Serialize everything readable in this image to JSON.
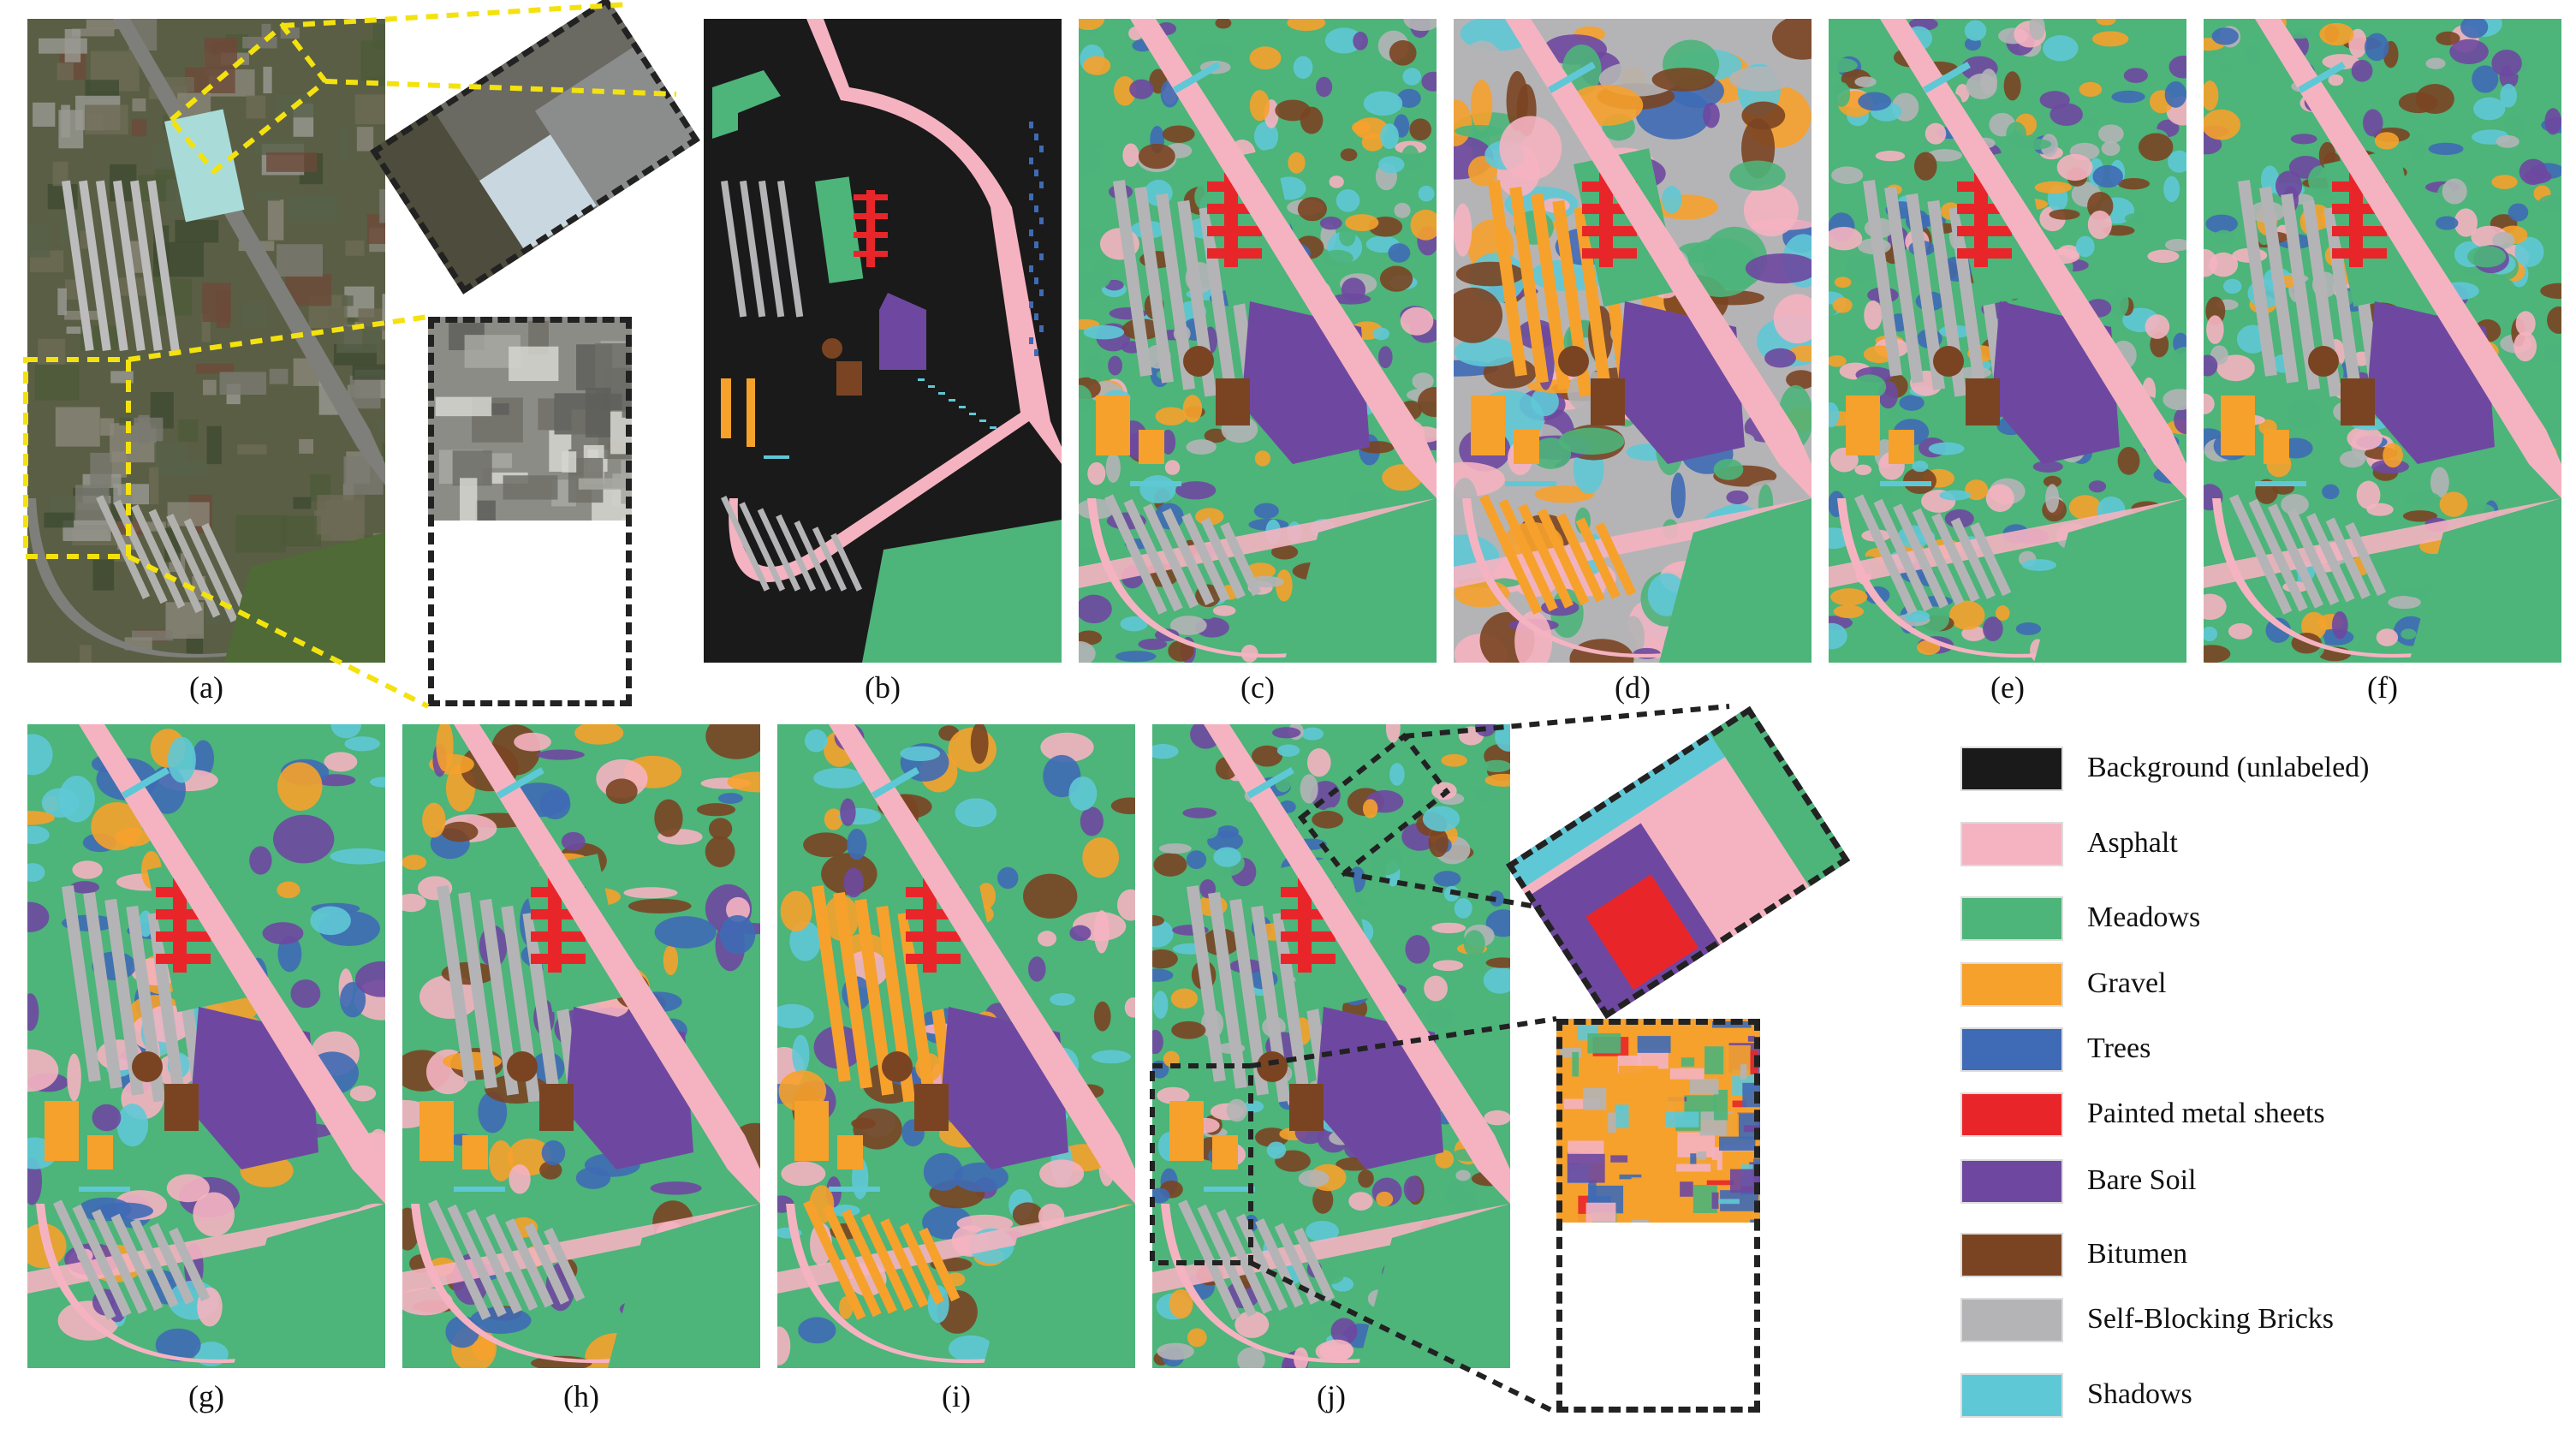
{
  "panels": [
    {
      "id": "a",
      "caption": "(a)",
      "kind": "rgb"
    },
    {
      "id": "b",
      "caption": "(b)",
      "kind": "groundtruth"
    },
    {
      "id": "c",
      "caption": "(c)",
      "kind": "map"
    },
    {
      "id": "d",
      "caption": "(d)",
      "kind": "map"
    },
    {
      "id": "e",
      "caption": "(e)",
      "kind": "map"
    },
    {
      "id": "f",
      "caption": "(f)",
      "kind": "map"
    },
    {
      "id": "g",
      "caption": "(g)",
      "kind": "map"
    },
    {
      "id": "h",
      "caption": "(h)",
      "kind": "map"
    },
    {
      "id": "i",
      "caption": "(i)",
      "kind": "map"
    },
    {
      "id": "j",
      "caption": "(j)",
      "kind": "map"
    }
  ],
  "legend": [
    {
      "label": "Background (unlabeled)",
      "color": "#1a1a1a"
    },
    {
      "label": "Asphalt",
      "color": "#f5b3c1"
    },
    {
      "label": "Meadows",
      "color": "#4db47a"
    },
    {
      "label": "Gravel",
      "color": "#f6a12c"
    },
    {
      "label": "Trees",
      "color": "#3f6ab5"
    },
    {
      "label": "Painted metal sheets",
      "color": "#e8262a"
    },
    {
      "label": "Bare Soil",
      "color": "#6e48a0"
    },
    {
      "label": "Bitumen",
      "color": "#7a4422"
    },
    {
      "label": "Self-Blocking Bricks",
      "color": "#b4b4b6"
    },
    {
      "label": "Shadows",
      "color": "#5fc8d6"
    }
  ]
}
